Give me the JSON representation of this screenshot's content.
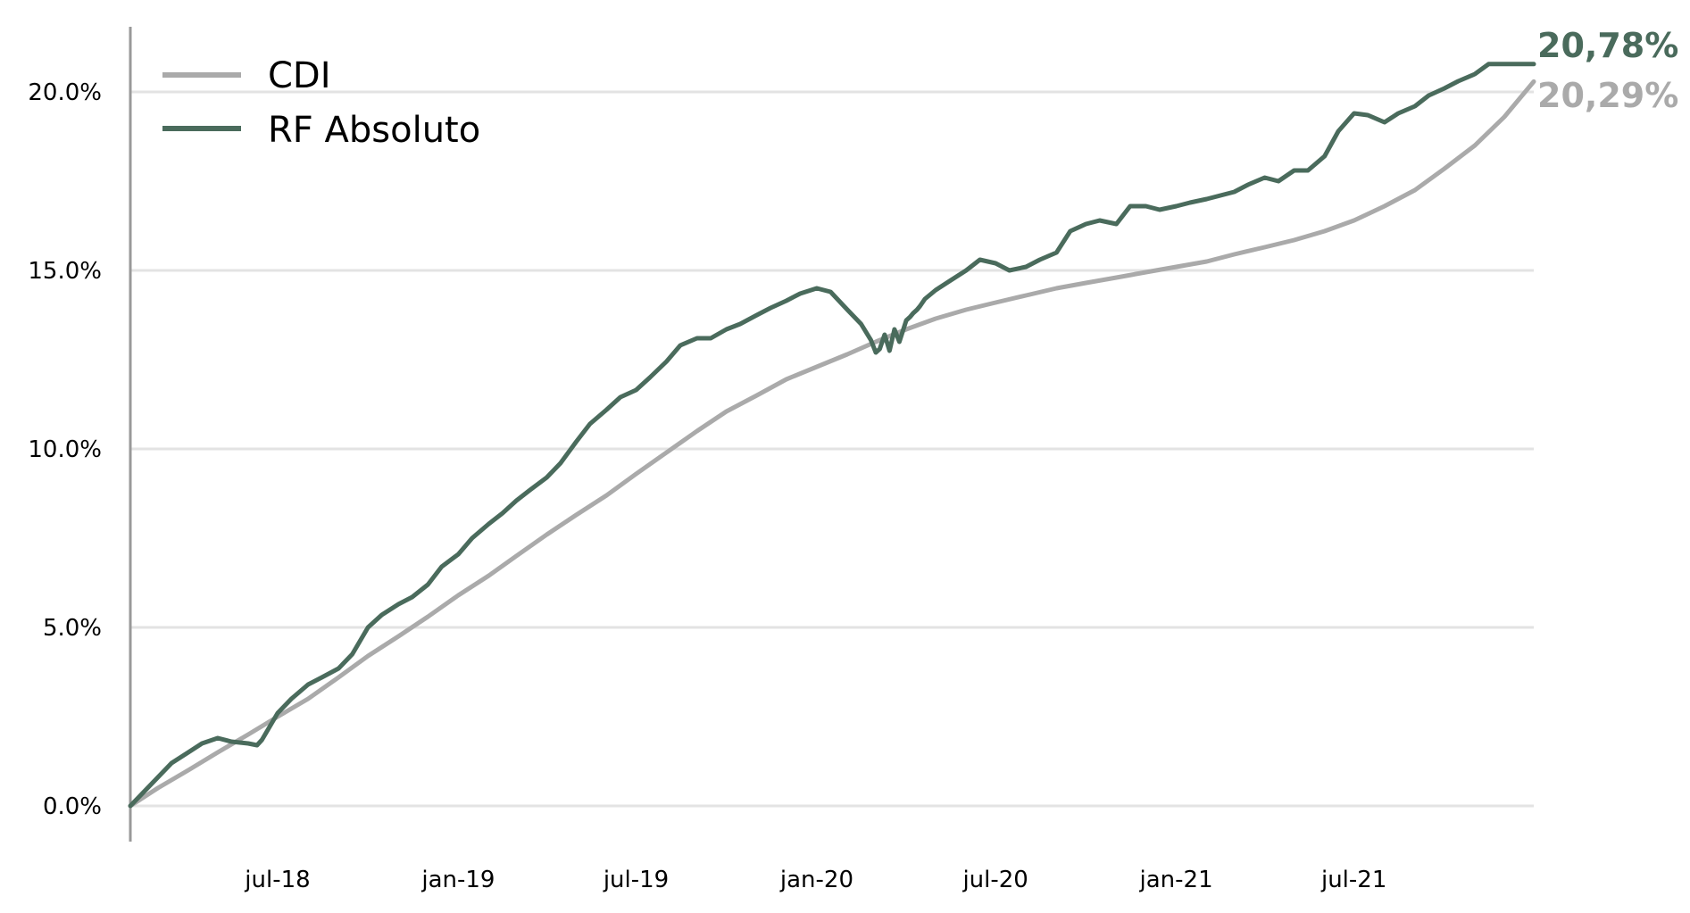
{
  "chart_data": {
    "type": "line",
    "title": "",
    "xlabel": "",
    "ylabel": "",
    "x_range": [
      "2018-02-01",
      "2021-12-31"
    ],
    "ylim": [
      -1.0,
      22.0
    ],
    "y_ticks": [
      0,
      5,
      10,
      15,
      20
    ],
    "y_tick_labels": [
      "0.0%",
      "5.0%",
      "10.0%",
      "15.0%",
      "20.0%"
    ],
    "x_ticks": [
      "2018-07-01",
      "2019-01-01",
      "2019-07-01",
      "2020-01-01",
      "2020-07-01",
      "2021-01-01",
      "2021-07-01"
    ],
    "x_tick_labels": [
      "jul-18",
      "jan-19",
      "jul-19",
      "jan-20",
      "jul-20",
      "jan-21",
      "jul-21"
    ],
    "grid": "horizontal",
    "legend_position": "top-left",
    "end_labels": [
      {
        "series": "RF Absoluto",
        "text": "20,78%",
        "color": "#4a6b5c"
      },
      {
        "series": "CDI",
        "text": "20,29%",
        "color": "#aaaaaa"
      }
    ],
    "series": [
      {
        "name": "CDI",
        "color": "#aaaaaa",
        "x": [
          "2018-02-01",
          "2018-03-01",
          "2018-04-01",
          "2018-05-01",
          "2018-06-01",
          "2018-07-01",
          "2018-08-01",
          "2018-09-01",
          "2018-10-01",
          "2018-11-01",
          "2018-12-01",
          "2019-01-01",
          "2019-02-01",
          "2019-03-01",
          "2019-04-01",
          "2019-05-01",
          "2019-06-01",
          "2019-07-01",
          "2019-08-01",
          "2019-09-01",
          "2019-10-01",
          "2019-11-01",
          "2019-12-01",
          "2020-01-01",
          "2020-02-01",
          "2020-03-01",
          "2020-04-01",
          "2020-05-01",
          "2020-06-01",
          "2020-07-01",
          "2020-08-01",
          "2020-09-01",
          "2020-10-01",
          "2020-11-01",
          "2020-12-01",
          "2021-01-01",
          "2021-02-01",
          "2021-03-01",
          "2021-04-01",
          "2021-05-01",
          "2021-06-01",
          "2021-07-01",
          "2021-08-01",
          "2021-09-01",
          "2021-10-01",
          "2021-11-01",
          "2021-12-01",
          "2021-12-31"
        ],
        "values": [
          0.0,
          0.5,
          1.0,
          1.5,
          2.0,
          2.5,
          3.0,
          3.6,
          4.2,
          4.75,
          5.3,
          5.9,
          6.45,
          7.0,
          7.6,
          8.15,
          8.7,
          9.3,
          9.9,
          10.5,
          11.05,
          11.5,
          11.95,
          12.3,
          12.65,
          13.0,
          13.35,
          13.65,
          13.9,
          14.1,
          14.3,
          14.5,
          14.65,
          14.8,
          14.95,
          15.1,
          15.25,
          15.45,
          15.65,
          15.85,
          16.1,
          16.4,
          16.8,
          17.25,
          17.85,
          18.5,
          19.3,
          20.29
        ]
      },
      {
        "name": "RF Absoluto",
        "color": "#4a6b5c",
        "x": [
          "2018-02-01",
          "2018-02-15",
          "2018-03-01",
          "2018-03-15",
          "2018-04-01",
          "2018-04-15",
          "2018-05-01",
          "2018-05-15",
          "2018-06-01",
          "2018-06-10",
          "2018-06-15",
          "2018-07-01",
          "2018-07-15",
          "2018-08-01",
          "2018-08-15",
          "2018-09-01",
          "2018-09-15",
          "2018-10-01",
          "2018-10-15",
          "2018-11-01",
          "2018-11-15",
          "2018-12-01",
          "2018-12-15",
          "2019-01-01",
          "2019-01-15",
          "2019-02-01",
          "2019-02-15",
          "2019-03-01",
          "2019-03-15",
          "2019-04-01",
          "2019-04-15",
          "2019-05-01",
          "2019-05-15",
          "2019-06-01",
          "2019-06-15",
          "2019-07-01",
          "2019-07-15",
          "2019-08-01",
          "2019-08-15",
          "2019-09-01",
          "2019-09-15",
          "2019-10-01",
          "2019-10-15",
          "2019-11-01",
          "2019-11-15",
          "2019-12-01",
          "2019-12-15",
          "2020-01-01",
          "2020-01-15",
          "2020-02-01",
          "2020-02-15",
          "2020-02-25",
          "2020-03-01",
          "2020-03-05",
          "2020-03-10",
          "2020-03-15",
          "2020-03-20",
          "2020-03-25",
          "2020-04-01",
          "2020-04-05",
          "2020-04-08",
          "2020-04-12",
          "2020-04-15",
          "2020-04-20",
          "2020-05-01",
          "2020-05-15",
          "2020-06-01",
          "2020-06-15",
          "2020-07-01",
          "2020-07-15",
          "2020-08-01",
          "2020-08-15",
          "2020-09-01",
          "2020-09-15",
          "2020-10-01",
          "2020-10-15",
          "2020-11-01",
          "2020-11-15",
          "2020-12-01",
          "2020-12-15",
          "2021-01-01",
          "2021-01-15",
          "2021-02-01",
          "2021-02-15",
          "2021-03-01",
          "2021-03-15",
          "2021-04-01",
          "2021-04-15",
          "2021-05-01",
          "2021-05-15",
          "2021-06-01",
          "2021-06-15",
          "2021-07-01",
          "2021-07-15",
          "2021-08-01",
          "2021-08-15",
          "2021-09-01",
          "2021-09-15",
          "2021-10-01",
          "2021-10-15",
          "2021-11-01",
          "2021-11-15",
          "2021-12-01",
          "2021-12-15",
          "2021-12-31"
        ],
        "values": [
          0.0,
          0.4,
          0.8,
          1.2,
          1.5,
          1.75,
          1.9,
          1.8,
          1.75,
          1.7,
          1.85,
          2.6,
          3.0,
          3.4,
          3.6,
          3.85,
          4.25,
          5.0,
          5.35,
          5.65,
          5.85,
          6.2,
          6.7,
          7.05,
          7.5,
          7.9,
          8.2,
          8.55,
          8.85,
          9.2,
          9.6,
          10.2,
          10.7,
          11.1,
          11.45,
          11.65,
          12.0,
          12.45,
          12.9,
          13.1,
          13.1,
          13.35,
          13.5,
          13.75,
          13.95,
          14.15,
          14.35,
          14.5,
          14.4,
          13.9,
          13.5,
          13.05,
          12.7,
          12.8,
          13.2,
          12.75,
          13.35,
          13.0,
          13.6,
          13.7,
          13.8,
          13.9,
          14.0,
          14.2,
          14.45,
          14.7,
          15.0,
          15.3,
          15.2,
          15.0,
          15.1,
          15.3,
          15.5,
          16.1,
          16.3,
          16.4,
          16.3,
          16.8,
          16.8,
          16.7,
          16.8,
          16.9,
          17.0,
          17.1,
          17.2,
          17.4,
          17.6,
          17.5,
          17.8,
          17.8,
          18.2,
          18.9,
          19.4,
          19.35,
          19.15,
          19.4,
          19.6,
          19.9,
          20.1,
          20.3,
          20.5,
          20.78,
          20.78,
          20.78,
          20.78
        ]
      }
    ]
  }
}
